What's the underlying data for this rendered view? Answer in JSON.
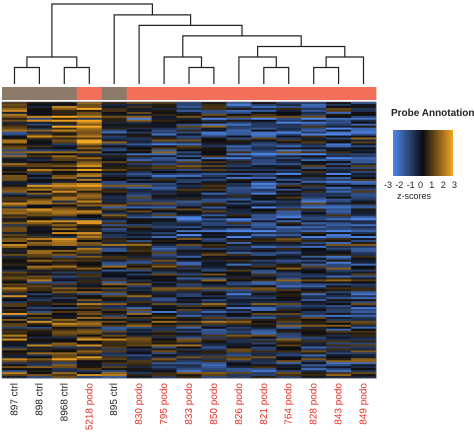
{
  "chart_data": {
    "type": "heatmap",
    "title": "",
    "samples": [
      {
        "label": "897 ctrl",
        "group": "ctrl"
      },
      {
        "label": "898 ctrl",
        "group": "ctrl"
      },
      {
        "label": "8968 ctrl",
        "group": "ctrl"
      },
      {
        "label": "5218 podo",
        "group": "podo"
      },
      {
        "label": "895 ctrl",
        "group": "ctrl"
      },
      {
        "label": "830 podo",
        "group": "podo"
      },
      {
        "label": "795 podo",
        "group": "podo"
      },
      {
        "label": "833 podo",
        "group": "podo"
      },
      {
        "label": "850 podo",
        "group": "podo"
      },
      {
        "label": "826 podo",
        "group": "podo"
      },
      {
        "label": "821 podo",
        "group": "podo"
      },
      {
        "label": "764 podo",
        "group": "podo"
      },
      {
        "label": "828 podo",
        "group": "podo"
      },
      {
        "label": "843 podo",
        "group": "podo"
      },
      {
        "label": "849 podo",
        "group": "podo"
      }
    ],
    "group_colors": {
      "ctrl": "#8c7b6b",
      "podo": "#f26f5a"
    },
    "label_colors": {
      "ctrl": "#222222",
      "podo": "#e8312a"
    },
    "color_scale": {
      "low": "#4f86e8",
      "mid": "#0c0c10",
      "high": "#f5a623",
      "range": [
        -3,
        3
      ],
      "ticks": [
        "-3",
        "-2",
        "-1",
        "0",
        "1",
        "2",
        "3"
      ],
      "label": "z-scores"
    },
    "legend_title": "Probe Annotations",
    "n_rows": 140,
    "dendrogram_merges": [
      [
        0,
        1
      ],
      [
        2,
        3
      ],
      [
        -1,
        -2
      ],
      [
        12,
        13
      ],
      [
        -4,
        14
      ],
      [
        10,
        11
      ],
      [
        9,
        -6
      ],
      [
        -7,
        -5
      ],
      [
        7,
        8
      ],
      [
        6,
        -9
      ],
      [
        -10,
        -8
      ],
      [
        5,
        -11
      ],
      [
        4,
        -12
      ],
      [
        -3,
        -13
      ]
    ]
  }
}
